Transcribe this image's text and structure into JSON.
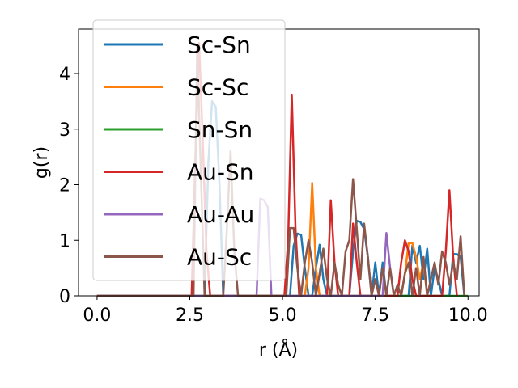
{
  "chart_data": {
    "type": "line",
    "title": "",
    "xlabel": "r (Å)",
    "ylabel": "g(r)",
    "xlim": [
      -0.5,
      10.3
    ],
    "ylim": [
      0,
      4.8
    ],
    "xticks": [
      "0.0",
      "2.5",
      "5.0",
      "7.5",
      "10.0"
    ],
    "xtick_values": [
      0.0,
      2.5,
      5.0,
      7.5,
      10.0
    ],
    "yticks": [
      "0",
      "1",
      "2",
      "3",
      "4"
    ],
    "ytick_values": [
      0,
      1,
      2,
      3,
      4
    ],
    "legend_position": "upper-left",
    "series": [
      {
        "name": "Sc-Sn",
        "color": "#1f77b4",
        "x": [
          0.0,
          2.9,
          3.0,
          3.1,
          3.2,
          3.3,
          3.4,
          5.2,
          5.3,
          5.4,
          5.5,
          5.6,
          5.7,
          5.8,
          5.9,
          6.0,
          6.1,
          6.2,
          6.3,
          6.8,
          6.9,
          7.0,
          7.1,
          7.2,
          7.3,
          7.4,
          7.5,
          7.6,
          7.7,
          7.8,
          8.4,
          8.5,
          8.6,
          8.7,
          8.8,
          8.9,
          9.0,
          9.1,
          9.2,
          9.3,
          9.5,
          9.6,
          9.7,
          9.8,
          9.9
        ],
        "y": [
          0,
          0,
          2.4,
          3.5,
          3.4,
          2.0,
          0,
          0,
          0.9,
          1.12,
          1.1,
          0.5,
          0,
          0,
          0.5,
          0.92,
          0.3,
          0,
          0,
          0,
          0.8,
          1.35,
          1.33,
          1.2,
          0.7,
          0,
          0.6,
          0.0,
          0.6,
          0,
          0,
          0.9,
          0.6,
          0.9,
          0.3,
          0.85,
          0,
          0.5,
          0.3,
          0,
          0,
          0.75,
          0.75,
          0.7,
          0
        ]
      },
      {
        "name": "Sc-Sc",
        "color": "#ff7f0e",
        "x": [
          0.0,
          5.6,
          5.7,
          5.8,
          5.9,
          6.0,
          8.2,
          8.3,
          8.4,
          8.5,
          8.6,
          8.7,
          8.8,
          8.9,
          9.0
        ],
        "y": [
          0,
          0,
          0.5,
          2.03,
          0.5,
          0,
          0,
          0.4,
          0.95,
          0.95,
          0.7,
          0.3,
          0.6,
          0,
          0
        ]
      },
      {
        "name": "Sn-Sn",
        "color": "#2ca02c",
        "x": [
          0.0,
          10.0
        ],
        "y": [
          0,
          0
        ]
      },
      {
        "name": "Au-Sn",
        "color": "#d62728",
        "x": [
          0.0,
          2.55,
          2.65,
          2.75,
          2.85,
          2.95,
          3.05,
          5.05,
          5.15,
          5.25,
          5.35,
          5.45,
          6.2,
          6.3,
          6.4,
          6.5,
          6.8,
          6.9,
          7.0,
          7.1,
          8.1,
          8.2,
          8.3,
          8.4,
          8.5,
          8.6,
          9.3,
          9.4,
          9.5,
          9.6,
          9.7
        ],
        "y": [
          0,
          0,
          2.5,
          4.55,
          2.8,
          0.8,
          0,
          0,
          1.0,
          3.62,
          1.2,
          0,
          0,
          1.72,
          0.6,
          0,
          0,
          1.3,
          0.6,
          0,
          0,
          0.6,
          1.0,
          0.8,
          0.3,
          0,
          0,
          0.8,
          1.9,
          0.7,
          0
        ]
      },
      {
        "name": "Au-Au",
        "color": "#9467bd",
        "x": [
          0.0,
          4.3,
          4.4,
          4.5,
          4.6,
          4.7,
          7.7,
          7.8,
          7.9,
          8.0
        ],
        "y": [
          0,
          0,
          1.75,
          1.72,
          1.6,
          0,
          0,
          1.13,
          0.5,
          0
        ]
      },
      {
        "name": "Au-Sc",
        "color": "#8c564b",
        "x": [
          0.0,
          2.6,
          2.7,
          2.8,
          2.9,
          3.4,
          3.5,
          3.6,
          3.7,
          3.8,
          5.1,
          5.2,
          5.3,
          5.4,
          5.5,
          5.6,
          5.7,
          5.8,
          5.9,
          6.0,
          6.1,
          6.2,
          6.3,
          6.4,
          6.5,
          6.6,
          6.7,
          6.8,
          6.9,
          7.0,
          7.1,
          7.2,
          7.3,
          7.4,
          7.5,
          7.6,
          7.7,
          7.8,
          7.9,
          8.0,
          8.1,
          8.2,
          8.3,
          8.4,
          8.5,
          8.6,
          8.7,
          8.8,
          8.9,
          9.0,
          9.1,
          9.2,
          9.3,
          9.4,
          9.5,
          9.6,
          9.7,
          9.8,
          9.9
        ],
        "y": [
          0,
          0,
          4.5,
          2.2,
          0,
          0,
          1.2,
          2.6,
          0.8,
          0,
          0,
          1.22,
          1.22,
          0.5,
          0,
          0.6,
          1.0,
          0.6,
          0,
          0.4,
          0.85,
          0.3,
          0,
          0.6,
          0.2,
          0,
          0.8,
          1.0,
          2.1,
          1.2,
          0.3,
          1.3,
          0.7,
          0,
          0.3,
          0,
          0.5,
          0,
          0.5,
          0,
          0.2,
          0,
          0.4,
          0.6,
          0,
          0.5,
          0,
          0.7,
          0,
          0.3,
          0.6,
          0.2,
          0.8,
          0.6,
          0.2,
          0.6,
          0.3,
          1.07,
          0
        ]
      }
    ]
  }
}
